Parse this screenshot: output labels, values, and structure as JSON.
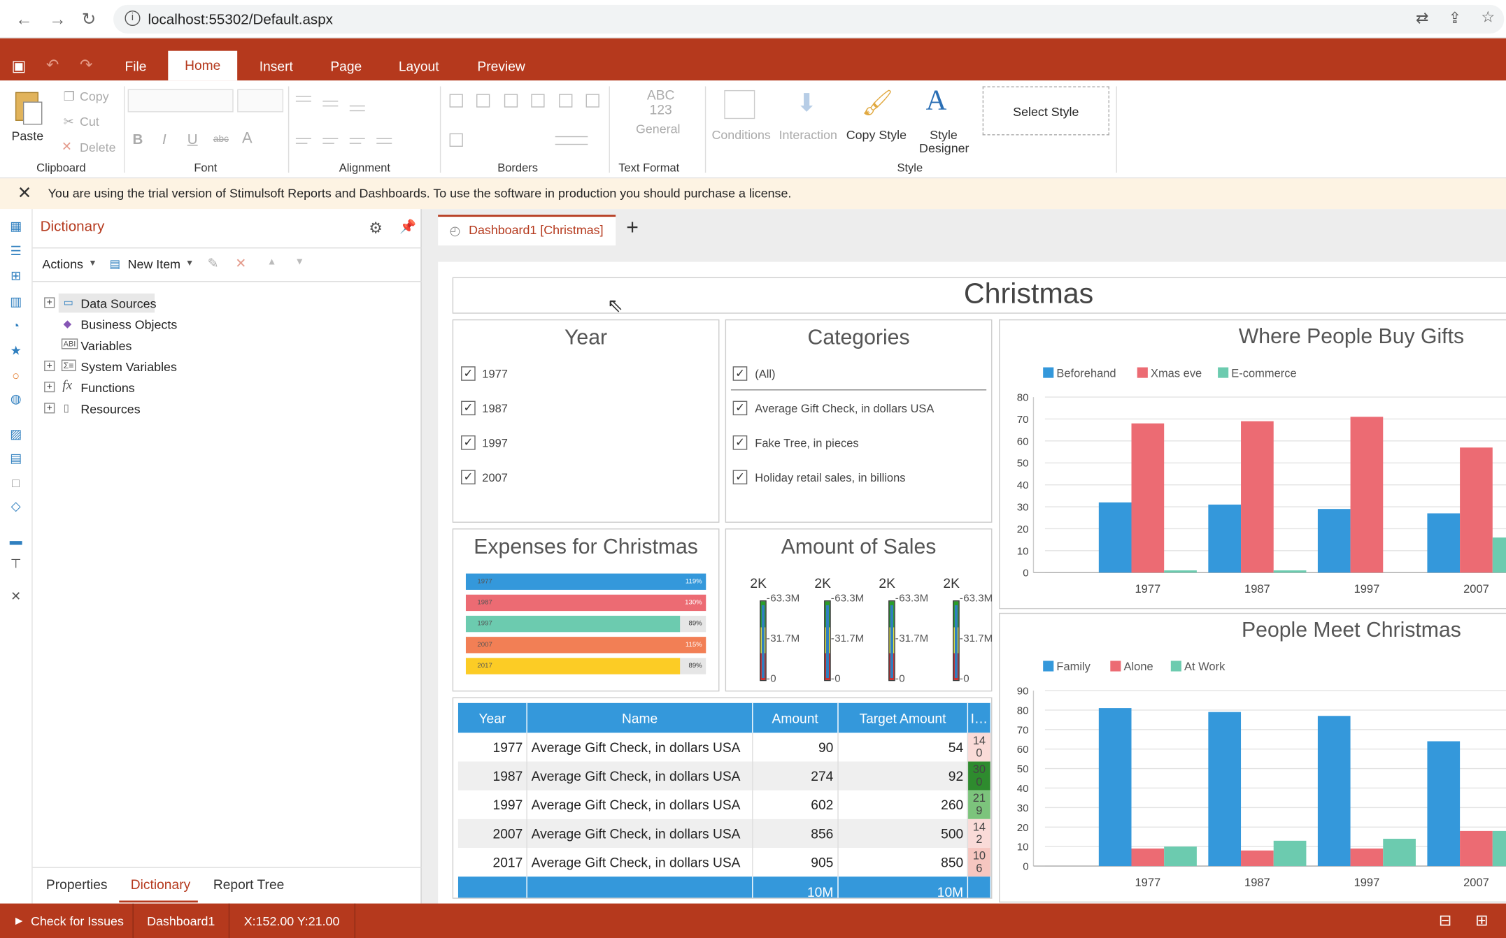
{
  "browser": {
    "url": "localhost:55302/Default.aspx"
  },
  "menu": {
    "file": "File",
    "home": "Home",
    "insert": "Insert",
    "page": "Page",
    "layout": "Layout",
    "preview": "Preview"
  },
  "ribbon": {
    "paste": "Paste",
    "copy": "Copy",
    "cut": "Cut",
    "delete": "Delete",
    "text_format_sample": "ABC\n123",
    "text_format_value": "General",
    "conditions": "Conditions",
    "interaction": "Interaction",
    "copy_style": "Copy Style",
    "style_designer_1": "Style",
    "style_designer_2": "Designer",
    "select_style": "Select Style",
    "groups": {
      "clipboard": "Clipboard",
      "font": "Font",
      "alignment": "Alignment",
      "borders": "Borders",
      "text_format": "Text Format",
      "style": "Style"
    },
    "font_bold": "B",
    "font_italic": "I",
    "font_underline": "U",
    "font_strike": "abc",
    "font_color": "A"
  },
  "trial_banner": "You are using the trial version of Stimulsoft Reports and Dashboards. To use the software in production you should purchase a license.",
  "dictionary": {
    "title": "Dictionary",
    "actions": "Actions",
    "new_item": "New Item",
    "tree": [
      "Data Sources",
      "Business Objects",
      "Variables",
      "System Variables",
      "Functions",
      "Resources"
    ],
    "tree_icon_labels": {
      "variables": "ABI",
      "system_variables": "Σ≡",
      "functions": "fx"
    },
    "tabs": [
      "Properties",
      "Dictionary",
      "Report Tree"
    ]
  },
  "canvas": {
    "tab_label": "Dashboard1 [Christmas]",
    "dashboard_title": "Christmas",
    "year_panel": {
      "title": "Year",
      "items": [
        "1977",
        "1987",
        "1997",
        "2007"
      ]
    },
    "categories_panel": {
      "title": "Categories",
      "items": [
        "(All)",
        "Average Gift Check, in dollars USA",
        "Fake Tree, in pieces",
        "Holiday retail sales, in billions"
      ]
    },
    "expenses_panel": {
      "title": "Expenses for Christmas",
      "bars": [
        {
          "label": "1977",
          "pct": "119%",
          "value": 1.0,
          "color": "#3498db"
        },
        {
          "label": "1987",
          "pct": "130%",
          "value": 1.0,
          "color": "#ec6b73"
        },
        {
          "label": "1997",
          "pct": "89%",
          "value": 0.89,
          "color": "#6ccbaf"
        },
        {
          "label": "2007",
          "pct": "115%",
          "value": 1.0,
          "color": "#f27f55"
        },
        {
          "label": "2017",
          "pct": "89%",
          "value": 0.89,
          "color": "#fccc25"
        }
      ]
    },
    "sales_panel": {
      "title": "Amount of Sales",
      "gauge_top": "2K",
      "ticks": [
        "63.3M",
        "31.7M",
        "0"
      ],
      "count": 4
    },
    "table": {
      "headers": [
        "Year",
        "Name",
        "Amount",
        "Target Amount",
        "I…"
      ],
      "rows": [
        {
          "year": "1977",
          "name": "Average Gift Check, in dollars USA",
          "amount": "90",
          "target": "54",
          "ind": "14\n0",
          "indcolor": "#fadbd8"
        },
        {
          "year": "1987",
          "name": "Average Gift Check, in dollars USA",
          "amount": "274",
          "target": "92",
          "ind": "30\n0",
          "indcolor": "#2e8b2e"
        },
        {
          "year": "1997",
          "name": "Average Gift Check, in dollars USA",
          "amount": "602",
          "target": "260",
          "ind": "21\n9",
          "indcolor": "#7cc47c"
        },
        {
          "year": "2007",
          "name": "Average Gift Check, in dollars USA",
          "amount": "856",
          "target": "500",
          "ind": "14\n2",
          "indcolor": "#fadbd8"
        },
        {
          "year": "2017",
          "name": "Average Gift Check, in dollars USA",
          "amount": "905",
          "target": "850",
          "ind": "10\n6",
          "indcolor": "#f6c6c0"
        }
      ],
      "footer": {
        "amount": "10M",
        "target": "10M"
      }
    }
  },
  "chart_data": [
    {
      "type": "bar",
      "title": "Where People Buy Gifts",
      "categories": [
        "1977",
        "1987",
        "1997",
        "2007"
      ],
      "series": [
        {
          "name": "Beforehand",
          "values": [
            32,
            31,
            29,
            27
          ],
          "color": "#3498db"
        },
        {
          "name": "Xmas eve",
          "values": [
            68,
            69,
            71,
            57
          ],
          "color": "#ec6b73"
        },
        {
          "name": "E-commerce",
          "values": [
            1,
            1,
            0,
            16
          ],
          "color": "#6ccbaf"
        }
      ],
      "ylim": [
        0,
        80
      ],
      "yticks": [
        0,
        10,
        20,
        30,
        40,
        50,
        60,
        70,
        80
      ],
      "legend": "top-left"
    },
    {
      "type": "bar",
      "title": "People Meet Christmas",
      "categories": [
        "1977",
        "1987",
        "1997",
        "2007"
      ],
      "series": [
        {
          "name": "Family",
          "values": [
            81,
            79,
            77,
            64
          ],
          "color": "#3498db"
        },
        {
          "name": "Alone",
          "values": [
            9,
            8,
            9,
            18
          ],
          "color": "#ec6b73"
        },
        {
          "name": "At Work",
          "values": [
            10,
            13,
            14,
            18
          ],
          "color": "#6ccbaf"
        }
      ],
      "ylim": [
        0,
        90
      ],
      "yticks": [
        0,
        10,
        20,
        30,
        40,
        50,
        60,
        70,
        80,
        90
      ],
      "legend": "top-left"
    }
  ],
  "status": {
    "check": "Check for Issues",
    "page": "Dashboard1",
    "coords": "X:152.00 Y:21.00"
  }
}
